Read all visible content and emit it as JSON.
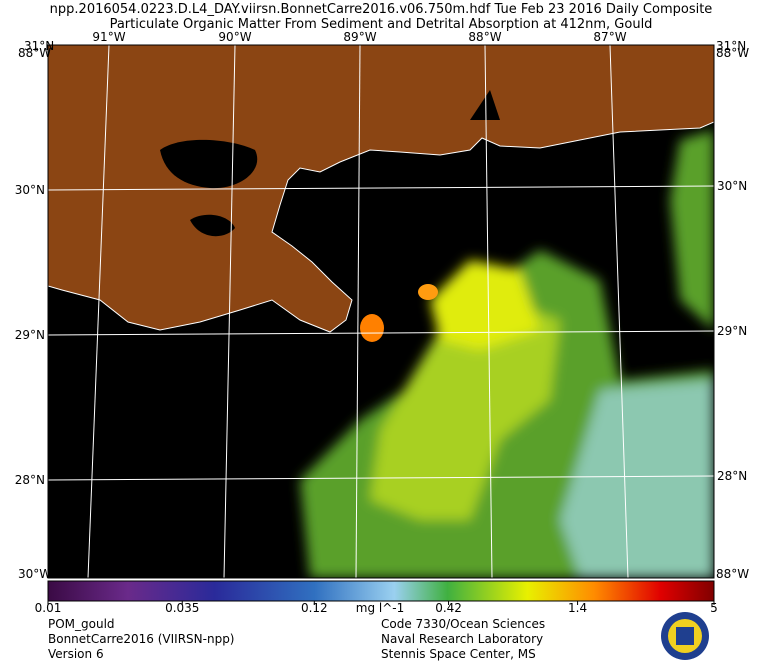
{
  "header": {
    "line1": "npp.2016054.0223.D.L4_DAY.viirsn.BonnetCarre2016.v06.750m.hdf     Tue Feb 23 2016 Daily Composite",
    "line2": "Particulate Organic Matter From Sediment and Detrital Absorption at 412nm, Gould"
  },
  "map": {
    "lon_labels": [
      "91°W",
      "90°W",
      "89°W",
      "88°W",
      "87°W"
    ],
    "lat_labels": [
      "30°N",
      "29°N",
      "28°N"
    ],
    "corner_labels": [
      "31°N",
      "88°W",
      "30°W"
    ]
  },
  "colorbar": {
    "range": [
      0.01,
      5
    ],
    "log": true,
    "ticks": [
      0.01,
      0.035,
      0.12,
      0.42,
      1.4,
      5
    ],
    "units": "mg l^-1"
  },
  "footer": {
    "left": [
      "POM_gould",
      "BonnetCarre2016 (VIIRSN-npp)",
      "Version 6"
    ],
    "right": [
      "Code 7330/Ocean Sciences",
      "Naval Research Laboratory",
      "Stennis Space Center, MS"
    ]
  }
}
